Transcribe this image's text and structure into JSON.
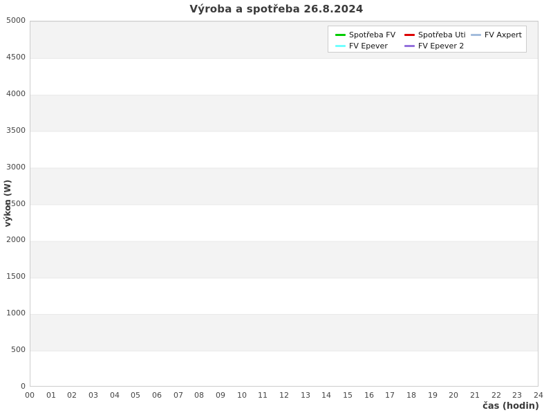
{
  "chart_data": {
    "type": "line",
    "title": "Výroba a spotřeba 26.8.2024",
    "xlabel": "čas (hodin)",
    "ylabel": "výkon (W)",
    "xlim": [
      0,
      24
    ],
    "ylim": [
      0,
      5000
    ],
    "xticks": [
      "00",
      "01",
      "02",
      "03",
      "04",
      "05",
      "06",
      "07",
      "08",
      "09",
      "10",
      "11",
      "12",
      "13",
      "14",
      "15",
      "16",
      "17",
      "18",
      "19",
      "20",
      "21",
      "22",
      "23",
      "24"
    ],
    "yticks": [
      0,
      500,
      1000,
      1500,
      2000,
      2500,
      3000,
      3500,
      4000,
      4500,
      5000
    ],
    "grid": "alternating horizontal bands every 500 W, no vertical gridlines",
    "legend_position": "top-right inside plot, 3 columns",
    "series": [
      {
        "name": "Spotřeba FV",
        "color": "#00cc00",
        "values": []
      },
      {
        "name": "Spotřeba Uti",
        "color": "#dd0000",
        "values": []
      },
      {
        "name": "FV Axpert",
        "color": "#a3bcdc",
        "values": []
      },
      {
        "name": "FV Epever",
        "color": "#70ffff",
        "values": []
      },
      {
        "name": "FV Epever 2",
        "color": "#9370db",
        "values": []
      }
    ],
    "plotted_data_visible": false
  },
  "colors": {
    "background": "#ffffff",
    "band_gray": "#f3f3f3",
    "band_line": "#e9e9e9",
    "plot_border": "#cccccc",
    "tick_text": "#444444",
    "title_text": "#3b3b3b",
    "legend_border": "#cccccc",
    "legend_text": "#111111"
  }
}
